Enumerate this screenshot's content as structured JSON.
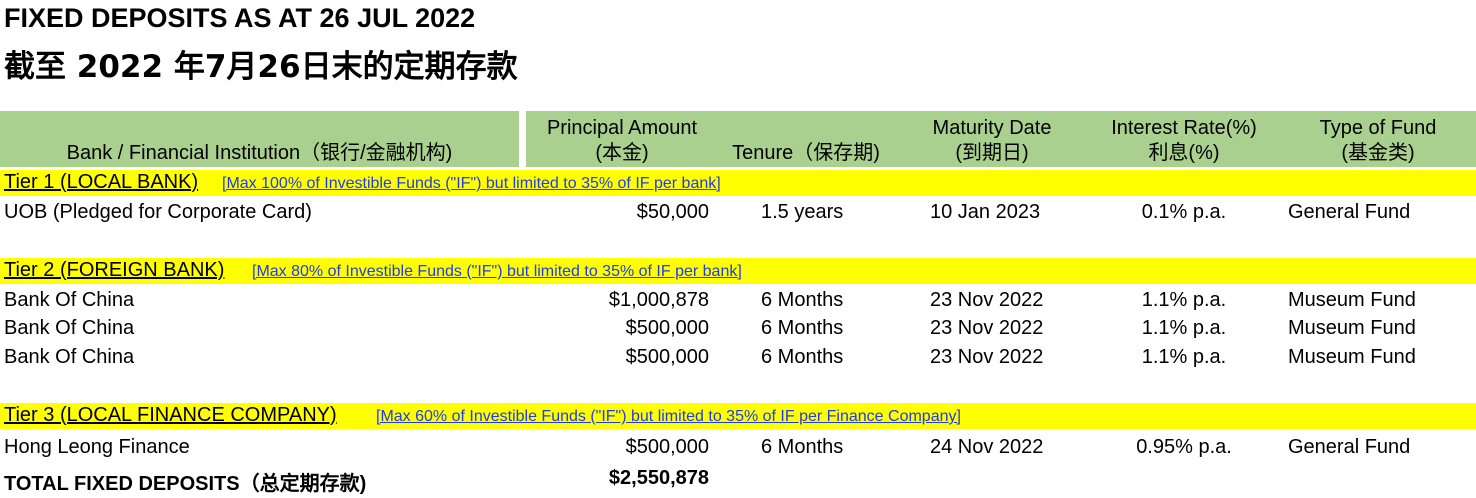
{
  "title_en": "FIXED DEPOSITS AS AT 26 JUL 2022",
  "title_cn": "截至 2022 年7月26日末的定期存款",
  "headers": {
    "bank": "Bank / Financial Institution（银行/金融机构)",
    "principal_l1": "Principal Amount",
    "principal_l2": "(本金)",
    "tenure": "Tenure（保存期)",
    "maturity_l1": "Maturity Date",
    "maturity_l2": "(到期日)",
    "rate_l1": "Interest Rate(%)",
    "rate_l2": "利息(%)",
    "fund_l1": "Type of Fund",
    "fund_l2": "(基金类)"
  },
  "tiers": [
    {
      "name": "Tier 1 (LOCAL BANK)",
      "note": "[Max 100% of Investible Funds (\"IF\") but limited to 35% of IF per bank]",
      "rows": [
        {
          "bank": "UOB (Pledged for Corporate Card)",
          "amount": "$50,000",
          "tenure": "1.5 years",
          "maturity": "10 Jan 2023",
          "rate": "0.1% p.a.",
          "fund": "General Fund"
        }
      ]
    },
    {
      "name": "Tier 2 (FOREIGN BANK)",
      "note": "[Max 80% of Investible Funds (\"IF\") but limited to 35% of IF per bank]",
      "rows": [
        {
          "bank": "Bank Of China",
          "amount": "$1,000,878",
          "tenure": "6 Months",
          "maturity": "23 Nov 2022",
          "rate": "1.1% p.a.",
          "fund": "Museum Fund"
        },
        {
          "bank": "Bank Of China",
          "amount": "$500,000",
          "tenure": "6 Months",
          "maturity": "23 Nov 2022",
          "rate": "1.1% p.a.",
          "fund": "Museum Fund"
        },
        {
          "bank": "Bank Of China",
          "amount": "$500,000",
          "tenure": "6 Months",
          "maturity": "23 Nov 2022",
          "rate": "1.1% p.a.",
          "fund": "Museum Fund"
        }
      ]
    },
    {
      "name": "Tier 3 (LOCAL FINANCE COMPANY)",
      "note": "[Max 60% of Investible Funds (\"IF\") but limited to 35% of IF per Finance Company]",
      "rows": [
        {
          "bank": "Hong Leong Finance",
          "amount": "$500,000",
          "tenure": "6 Months",
          "maturity": "24 Nov 2022",
          "rate": "0.95% p.a.",
          "fund": "General Fund"
        }
      ]
    }
  ],
  "total": {
    "label": "TOTAL FIXED DEPOSITS（总定期存款)",
    "amount": "$2,550,878"
  },
  "colors": {
    "header_bg": "#a9d08e",
    "tier_bg": "#ffff00",
    "note_text": "#1f3ce8"
  }
}
